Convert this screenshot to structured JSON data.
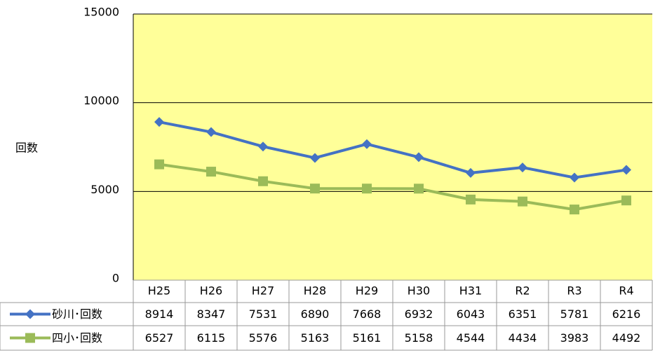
{
  "chart_data": {
    "type": "line",
    "y_axis_label": "回数",
    "categories": [
      "H25",
      "H26",
      "H27",
      "H28",
      "H29",
      "H30",
      "H31",
      "R2",
      "R3",
      "R4"
    ],
    "series": [
      {
        "name": "砂川･回数",
        "color": "#4472c4",
        "marker": "diamond",
        "values": [
          8914,
          8347,
          7531,
          6890,
          7668,
          6932,
          6043,
          6351,
          5781,
          6216
        ]
      },
      {
        "name": "四小･回数",
        "color": "#9bbb59",
        "marker": "square",
        "values": [
          6527,
          6115,
          5576,
          5163,
          5161,
          5158,
          4544,
          4434,
          3983,
          4492
        ]
      }
    ],
    "ylim": [
      0,
      15000
    ],
    "yticks": [
      0,
      5000,
      10000,
      15000
    ],
    "grid": true,
    "plot_background": "#ffff99",
    "data_table": true
  }
}
